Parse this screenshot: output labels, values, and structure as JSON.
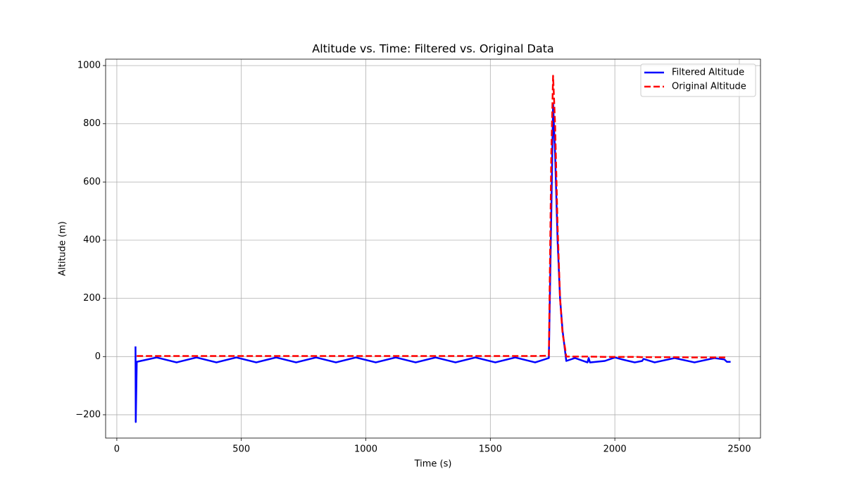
{
  "chart_data": {
    "type": "line",
    "title": "Altitude vs. Time: Filtered vs. Original Data",
    "x_label": "Time (s)",
    "y_label": "Altitude (m)",
    "x": [
      75,
      76,
      80,
      160,
      240,
      320,
      400,
      480,
      560,
      640,
      720,
      800,
      880,
      960,
      1040,
      1120,
      1200,
      1280,
      1360,
      1440,
      1520,
      1600,
      1680,
      1735,
      1745,
      1752,
      1760,
      1770,
      1780,
      1790,
      1800,
      1805,
      1840,
      1890,
      1895,
      1900,
      1960,
      2000,
      2040,
      2080,
      2110,
      2115,
      2160,
      2240,
      2320,
      2400,
      2440,
      2450,
      2465
    ],
    "series": [
      {
        "name": "Filtered Altitude",
        "color": "#0000ff",
        "dash": false,
        "values": [
          35,
          -225,
          -18,
          -3,
          -20,
          -3,
          -20,
          -3,
          -20,
          -3,
          -20,
          -3,
          -20,
          -3,
          -20,
          -3,
          -20,
          -3,
          -20,
          -3,
          -20,
          -3,
          -20,
          -5,
          500,
          870,
          700,
          400,
          200,
          90,
          20,
          -15,
          -5,
          -20,
          -5,
          -20,
          -15,
          -3,
          -12,
          -20,
          -15,
          -8,
          -20,
          -5,
          -20,
          -5,
          -10,
          -18,
          -18
        ]
      },
      {
        "name": "Original Altitude",
        "color": "#ff0000",
        "dash": true,
        "values": [
          null,
          null,
          2,
          2,
          2,
          2,
          2,
          2,
          2,
          2,
          2,
          2,
          2,
          2,
          2,
          2,
          2,
          2,
          2,
          2,
          2,
          2,
          2,
          3,
          700,
          965,
          800,
          450,
          200,
          80,
          30,
          0,
          0,
          0,
          0,
          0,
          -1,
          -1,
          -1,
          -1,
          -2,
          -2,
          -2,
          -2,
          -3,
          -3,
          -3,
          -3,
          null
        ]
      }
    ],
    "xlim": [
      -45,
      2585
    ],
    "ylim": [
      -280,
      1022
    ],
    "xticks": [
      0,
      500,
      1000,
      1500,
      2000,
      2500
    ],
    "yticks": [
      {
        "value": -200,
        "label": "−200"
      },
      0,
      200,
      400,
      600,
      800,
      1000
    ],
    "grid": true,
    "legend": "upper right"
  }
}
